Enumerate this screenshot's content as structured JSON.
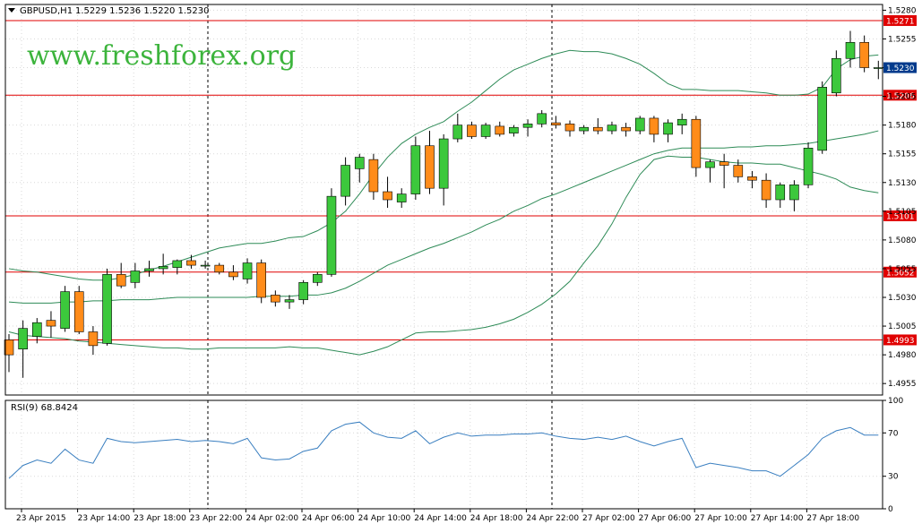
{
  "header": {
    "symbol_label": "GBPUSD,H1",
    "ohlc": "1.5229 1.5236 1.5220 1.5230"
  },
  "watermark": "www.freshforex.org",
  "colors": {
    "bull": "#3cc83c",
    "bear": "#ff8c1a",
    "level": "#e00000",
    "band": "#2e8b57",
    "rsi": "#3a7fc0",
    "grid": "#d9d9d9",
    "current_bg": "#003a8c"
  },
  "chart_data": [
    {
      "type": "candlestick",
      "title": "GBPUSD,H1",
      "ylim": [
        1.4945,
        1.5285
      ],
      "y_ticks": [
        "1.5280",
        "1.5255",
        "1.5230",
        "1.5205",
        "1.5180",
        "1.5155",
        "1.5130",
        "1.5105",
        "1.5080",
        "1.5055",
        "1.5030",
        "1.5005",
        "1.4980",
        "1.4955"
      ],
      "x_tick_labels": [
        "23 Apr 2015",
        "23 Apr 14:00",
        "23 Apr 18:00",
        "23 Apr 22:00",
        "24 Apr 02:00",
        "24 Apr 06:00",
        "24 Apr 10:00",
        "24 Apr 14:00",
        "24 Apr 18:00",
        "24 Apr 22:00",
        "27 Apr 02:00",
        "27 Apr 06:00",
        "27 Apr 10:00",
        "27 Apr 14:00",
        "27 Apr 18:00"
      ],
      "current_price": "1.5230",
      "levels": [
        "1.5271",
        "1.5206",
        "1.5101",
        "1.5052",
        "1.4993"
      ],
      "candles": [
        {
          "o": 1.4993,
          "h": 1.4998,
          "l": 1.4965,
          "c": 1.498
        },
        {
          "o": 1.4985,
          "h": 1.501,
          "l": 1.496,
          "c": 1.5003
        },
        {
          "o": 1.4996,
          "h": 1.5012,
          "l": 1.499,
          "c": 1.5008
        },
        {
          "o": 1.501,
          "h": 1.5018,
          "l": 1.4995,
          "c": 1.5005
        },
        {
          "o": 1.5003,
          "h": 1.504,
          "l": 1.5,
          "c": 1.5035
        },
        {
          "o": 1.5035,
          "h": 1.504,
          "l": 1.4998,
          "c": 1.5
        },
        {
          "o": 1.5,
          "h": 1.5005,
          "l": 1.498,
          "c": 1.4988
        },
        {
          "o": 1.499,
          "h": 1.5055,
          "l": 1.4988,
          "c": 1.505
        },
        {
          "o": 1.505,
          "h": 1.506,
          "l": 1.5038,
          "c": 1.504
        },
        {
          "o": 1.5043,
          "h": 1.506,
          "l": 1.5038,
          "c": 1.5053
        },
        {
          "o": 1.5053,
          "h": 1.5062,
          "l": 1.5048,
          "c": 1.5055
        },
        {
          "o": 1.5055,
          "h": 1.5068,
          "l": 1.505,
          "c": 1.5057
        },
        {
          "o": 1.5056,
          "h": 1.5063,
          "l": 1.505,
          "c": 1.5062
        },
        {
          "o": 1.5062,
          "h": 1.5067,
          "l": 1.5055,
          "c": 1.5058
        },
        {
          "o": 1.5058,
          "h": 1.5062,
          "l": 1.5055,
          "c": 1.5058
        },
        {
          "o": 1.5058,
          "h": 1.506,
          "l": 1.505,
          "c": 1.5052
        },
        {
          "o": 1.5052,
          "h": 1.5058,
          "l": 1.5045,
          "c": 1.5048
        },
        {
          "o": 1.5046,
          "h": 1.5064,
          "l": 1.5042,
          "c": 1.506
        },
        {
          "o": 1.506,
          "h": 1.5063,
          "l": 1.5025,
          "c": 1.503
        },
        {
          "o": 1.5032,
          "h": 1.5036,
          "l": 1.5022,
          "c": 1.5026
        },
        {
          "o": 1.5026,
          "h": 1.5032,
          "l": 1.502,
          "c": 1.5028
        },
        {
          "o": 1.5028,
          "h": 1.5045,
          "l": 1.5024,
          "c": 1.5043
        },
        {
          "o": 1.5043,
          "h": 1.5052,
          "l": 1.504,
          "c": 1.505
        },
        {
          "o": 1.505,
          "h": 1.5125,
          "l": 1.5048,
          "c": 1.5118
        },
        {
          "o": 1.5118,
          "h": 1.5152,
          "l": 1.511,
          "c": 1.5145
        },
        {
          "o": 1.5142,
          "h": 1.5155,
          "l": 1.513,
          "c": 1.5152
        },
        {
          "o": 1.515,
          "h": 1.5155,
          "l": 1.5115,
          "c": 1.5122
        },
        {
          "o": 1.5122,
          "h": 1.5135,
          "l": 1.5108,
          "c": 1.5115
        },
        {
          "o": 1.5113,
          "h": 1.5125,
          "l": 1.5108,
          "c": 1.512
        },
        {
          "o": 1.512,
          "h": 1.517,
          "l": 1.5115,
          "c": 1.5162
        },
        {
          "o": 1.5162,
          "h": 1.5175,
          "l": 1.512,
          "c": 1.5125
        },
        {
          "o": 1.5125,
          "h": 1.5172,
          "l": 1.511,
          "c": 1.5168
        },
        {
          "o": 1.5168,
          "h": 1.519,
          "l": 1.5165,
          "c": 1.518
        },
        {
          "o": 1.518,
          "h": 1.5183,
          "l": 1.5168,
          "c": 1.517
        },
        {
          "o": 1.517,
          "h": 1.5182,
          "l": 1.5168,
          "c": 1.518
        },
        {
          "o": 1.5179,
          "h": 1.5183,
          "l": 1.517,
          "c": 1.5172
        },
        {
          "o": 1.5173,
          "h": 1.518,
          "l": 1.517,
          "c": 1.5178
        },
        {
          "o": 1.5178,
          "h": 1.5185,
          "l": 1.517,
          "c": 1.5181
        },
        {
          "o": 1.5181,
          "h": 1.5193,
          "l": 1.5178,
          "c": 1.519
        },
        {
          "o": 1.5182,
          "h": 1.5188,
          "l": 1.5177,
          "c": 1.518
        },
        {
          "o": 1.5181,
          "h": 1.5184,
          "l": 1.517,
          "c": 1.5175
        },
        {
          "o": 1.5175,
          "h": 1.518,
          "l": 1.5172,
          "c": 1.5178
        },
        {
          "o": 1.5178,
          "h": 1.5186,
          "l": 1.5172,
          "c": 1.5175
        },
        {
          "o": 1.5175,
          "h": 1.5183,
          "l": 1.5172,
          "c": 1.518
        },
        {
          "o": 1.5178,
          "h": 1.5182,
          "l": 1.517,
          "c": 1.5175
        },
        {
          "o": 1.5175,
          "h": 1.5188,
          "l": 1.5172,
          "c": 1.5186
        },
        {
          "o": 1.5186,
          "h": 1.5188,
          "l": 1.5165,
          "c": 1.5172
        },
        {
          "o": 1.5172,
          "h": 1.5185,
          "l": 1.5165,
          "c": 1.5182
        },
        {
          "o": 1.518,
          "h": 1.519,
          "l": 1.5172,
          "c": 1.5185
        },
        {
          "o": 1.5185,
          "h": 1.5188,
          "l": 1.5135,
          "c": 1.5143
        },
        {
          "o": 1.5143,
          "h": 1.515,
          "l": 1.513,
          "c": 1.5148
        },
        {
          "o": 1.5148,
          "h": 1.5155,
          "l": 1.5125,
          "c": 1.5145
        },
        {
          "o": 1.5145,
          "h": 1.515,
          "l": 1.513,
          "c": 1.5135
        },
        {
          "o": 1.5135,
          "h": 1.514,
          "l": 1.5125,
          "c": 1.5132
        },
        {
          "o": 1.5132,
          "h": 1.5138,
          "l": 1.5108,
          "c": 1.5115
        },
        {
          "o": 1.5115,
          "h": 1.513,
          "l": 1.5108,
          "c": 1.5128
        },
        {
          "o": 1.5115,
          "h": 1.5132,
          "l": 1.5105,
          "c": 1.5128
        },
        {
          "o": 1.5128,
          "h": 1.5165,
          "l": 1.5125,
          "c": 1.516
        },
        {
          "o": 1.5158,
          "h": 1.5218,
          "l": 1.5155,
          "c": 1.5213
        },
        {
          "o": 1.5208,
          "h": 1.5245,
          "l": 1.5205,
          "c": 1.5238
        },
        {
          "o": 1.5238,
          "h": 1.5262,
          "l": 1.523,
          "c": 1.5252
        },
        {
          "o": 1.5252,
          "h": 1.5258,
          "l": 1.5226,
          "c": 1.523
        },
        {
          "o": 1.523,
          "h": 1.5236,
          "l": 1.522,
          "c": 1.523
        }
      ],
      "bollinger": {
        "upper": [
          1.5055,
          1.5053,
          1.5052,
          1.505,
          1.5048,
          1.5046,
          1.5045,
          1.5045,
          1.5047,
          1.505,
          1.5054,
          1.5057,
          1.5061,
          1.5065,
          1.5069,
          1.5073,
          1.5075,
          1.5077,
          1.5077,
          1.5079,
          1.5082,
          1.5083,
          1.5088,
          1.5095,
          1.5105,
          1.512,
          1.5137,
          1.5152,
          1.5164,
          1.5172,
          1.5178,
          1.5183,
          1.5192,
          1.52,
          1.521,
          1.522,
          1.5228,
          1.5233,
          1.5238,
          1.5242,
          1.5245,
          1.5244,
          1.5244,
          1.5242,
          1.5238,
          1.5233,
          1.5225,
          1.5216,
          1.5211,
          1.5211,
          1.521,
          1.521,
          1.521,
          1.5209,
          1.5208,
          1.5206,
          1.5206,
          1.5207,
          1.5213,
          1.5229,
          1.5237,
          1.524,
          1.5241
        ],
        "middle": [
          1.5026,
          1.5025,
          1.5025,
          1.5025,
          1.5026,
          1.5026,
          1.5027,
          1.5027,
          1.5028,
          1.5028,
          1.5028,
          1.5029,
          1.503,
          1.503,
          1.503,
          1.503,
          1.503,
          1.503,
          1.5031,
          1.5031,
          1.5031,
          1.5032,
          1.5032,
          1.5034,
          1.5038,
          1.5044,
          1.5051,
          1.5058,
          1.5063,
          1.5068,
          1.5073,
          1.5077,
          1.5082,
          1.5087,
          1.5093,
          1.5098,
          1.5105,
          1.511,
          1.5116,
          1.512,
          1.5125,
          1.513,
          1.5135,
          1.514,
          1.5145,
          1.515,
          1.5155,
          1.5158,
          1.516,
          1.516,
          1.516,
          1.516,
          1.5161,
          1.5161,
          1.5162,
          1.5162,
          1.5163,
          1.5164,
          1.5166,
          1.5168,
          1.517,
          1.5172,
          1.5175
        ],
        "lower": [
          1.5,
          1.4997,
          1.4996,
          1.4995,
          1.4994,
          1.4992,
          1.4991,
          1.499,
          1.4989,
          1.4988,
          1.4987,
          1.4986,
          1.4986,
          1.4985,
          1.4985,
          1.4986,
          1.4986,
          1.4986,
          1.4986,
          1.4986,
          1.4987,
          1.4986,
          1.4986,
          1.4984,
          1.4982,
          1.498,
          1.4983,
          1.4987,
          1.4993,
          1.4999,
          1.5,
          1.5,
          1.5001,
          1.5002,
          1.5004,
          1.5007,
          1.5011,
          1.5017,
          1.5024,
          1.5033,
          1.5044,
          1.506,
          1.5075,
          1.5094,
          1.5117,
          1.5137,
          1.515,
          1.5153,
          1.5152,
          1.5152,
          1.515,
          1.5148,
          1.5147,
          1.5147,
          1.5146,
          1.5146,
          1.5143,
          1.514,
          1.5137,
          1.5133,
          1.5126,
          1.5123,
          1.5121
        ]
      }
    },
    {
      "type": "line",
      "title": "RSI(9) 68.8424",
      "ylim": [
        0,
        100
      ],
      "y_ticks": [
        "100",
        "70",
        "30",
        "0"
      ],
      "levels": [
        70,
        30
      ],
      "values": [
        28,
        40,
        45,
        42,
        55,
        45,
        42,
        65,
        62,
        61,
        62,
        63,
        64,
        62,
        63,
        62,
        60,
        65,
        47,
        45,
        46,
        53,
        56,
        72,
        78,
        80,
        70,
        66,
        65,
        72,
        60,
        66,
        70,
        67,
        68,
        68,
        69,
        69,
        70,
        67,
        65,
        64,
        66,
        64,
        67,
        62,
        58,
        62,
        65,
        38,
        42,
        40,
        38,
        35,
        35,
        30,
        40,
        50,
        65,
        72,
        75,
        68,
        68
      ]
    }
  ]
}
